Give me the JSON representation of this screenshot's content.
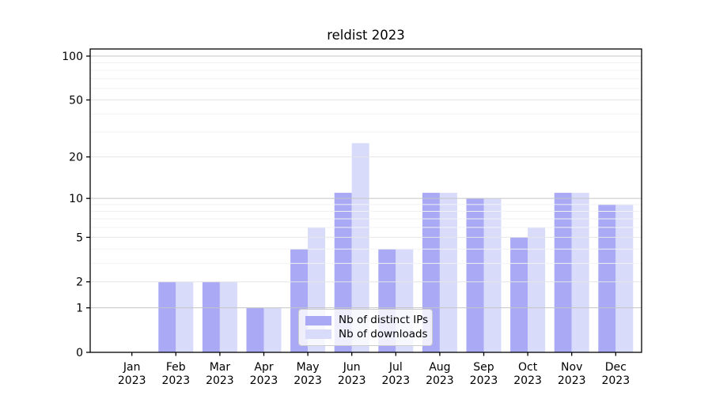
{
  "chart_data": {
    "type": "bar",
    "title": "reldist 2023",
    "categories": [
      "Jan 2023",
      "Feb 2023",
      "Mar 2023",
      "Apr 2023",
      "May 2023",
      "Jun 2023",
      "Jul 2023",
      "Aug 2023",
      "Sep 2023",
      "Oct 2023",
      "Nov 2023",
      "Dec 2023"
    ],
    "series": [
      {
        "name": "Nb of distinct IPs",
        "color": "#a9a9f5",
        "values": [
          0,
          2,
          2,
          1,
          4,
          11,
          4,
          11,
          10,
          5,
          11,
          9
        ]
      },
      {
        "name": "Nb of downloads",
        "color": "#d8dbfa",
        "values": [
          0,
          2,
          2,
          1,
          6,
          25,
          4,
          11,
          10,
          6,
          11,
          9
        ]
      }
    ],
    "xlabel": "",
    "ylabel": "",
    "y_scale": "log10(1+v)",
    "ylim": [
      0,
      112
    ],
    "y_ticks": [
      100,
      50,
      20,
      10,
      5,
      2,
      1,
      0
    ],
    "y_minor_gridlines": [
      3,
      4,
      6,
      7,
      8,
      9,
      30,
      40,
      60,
      70,
      80,
      90
    ],
    "grid": true,
    "legend_position": "lower center, inside plot",
    "colors": {
      "grid_decade": "#c5c5c5",
      "grid_mid": "#e6e6e6",
      "grid_minor": "#f2f2f2",
      "spine": "#000000",
      "text": "#000000",
      "legend_border": "#cccccc"
    }
  }
}
